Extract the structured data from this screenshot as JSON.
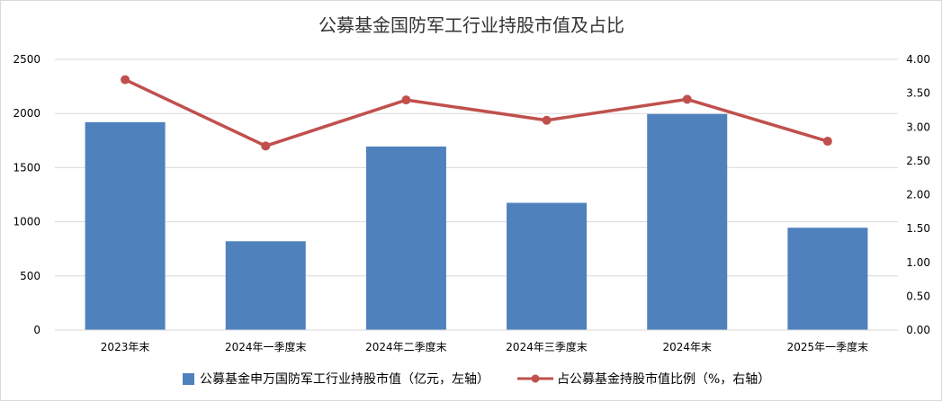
{
  "chart_data": {
    "type": "bar",
    "title": "公募基金国防军工行业持股市值及占比",
    "categories": [
      "2023年末",
      "2024年一季度末",
      "2024年二季度末",
      "2024年三季度末",
      "2024年末",
      "2025年一季度末"
    ],
    "series": [
      {
        "name": "公募基金申万国防军工行业持股市值（亿元，左轴）",
        "type": "bar",
        "axis": "left",
        "color": "#4f81bd",
        "values": [
          1920,
          820,
          1695,
          1175,
          1995,
          945
        ]
      },
      {
        "name": "占公募基金持股市值比例（%，右轴）",
        "type": "line",
        "axis": "right",
        "color": "#c0504d",
        "values": [
          3.7,
          2.72,
          3.4,
          3.1,
          3.41,
          2.79
        ]
      }
    ],
    "y_left": {
      "min": 0,
      "max": 2500,
      "ticks": [
        "0",
        "500",
        "1000",
        "1500",
        "2000",
        "2500"
      ]
    },
    "y_right": {
      "min": 0,
      "max": 4,
      "ticks": [
        "0.00",
        "0.50",
        "1.00",
        "1.50",
        "2.00",
        "2.50",
        "3.00",
        "3.50",
        "4.00"
      ]
    },
    "grid": true,
    "legend_position": "bottom"
  }
}
